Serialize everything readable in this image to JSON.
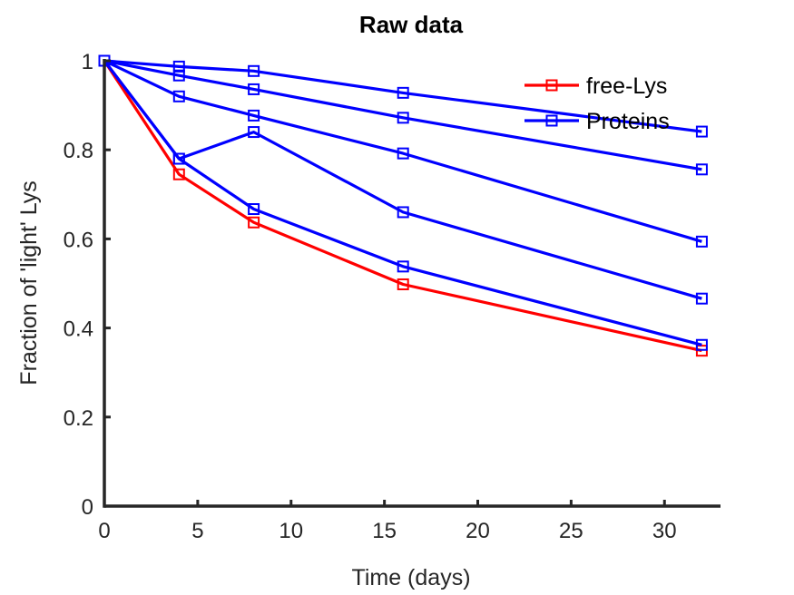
{
  "chart_data": {
    "type": "line",
    "title": "Raw data",
    "xlabel": "Time (days)",
    "ylabel": "Fraction of  'light'  Lys",
    "xlim": [
      0,
      33
    ],
    "ylim": [
      0,
      1
    ],
    "xticks": [
      0,
      5,
      10,
      15,
      20,
      25,
      30
    ],
    "yticks": [
      0,
      0.2,
      0.4,
      0.6,
      0.8,
      1
    ],
    "x": [
      0,
      4,
      8,
      16,
      32
    ],
    "legend_position": "top-right",
    "legend": [
      "free-Lys",
      "Proteins"
    ],
    "grid": false,
    "series": [
      {
        "name": "free-Lys",
        "color": "#ff0000",
        "values": [
          1.0,
          0.745,
          0.637,
          0.498,
          0.349
        ]
      },
      {
        "name": "Proteins",
        "color": "#0000ff",
        "values": [
          1.0,
          0.987,
          0.977,
          0.928,
          0.841
        ]
      },
      {
        "name": "Proteins",
        "color": "#0000ff",
        "values": [
          1.0,
          0.967,
          0.936,
          0.872,
          0.756
        ]
      },
      {
        "name": "Proteins",
        "color": "#0000ff",
        "values": [
          1.0,
          0.92,
          0.877,
          0.792,
          0.594
        ]
      },
      {
        "name": "Proteins",
        "color": "#0000ff",
        "values": [
          1.0,
          0.78,
          0.84,
          0.66,
          0.466
        ]
      },
      {
        "name": "Proteins",
        "color": "#0000ff",
        "values": [
          1.0,
          0.78,
          0.667,
          0.538,
          0.362
        ]
      }
    ]
  }
}
